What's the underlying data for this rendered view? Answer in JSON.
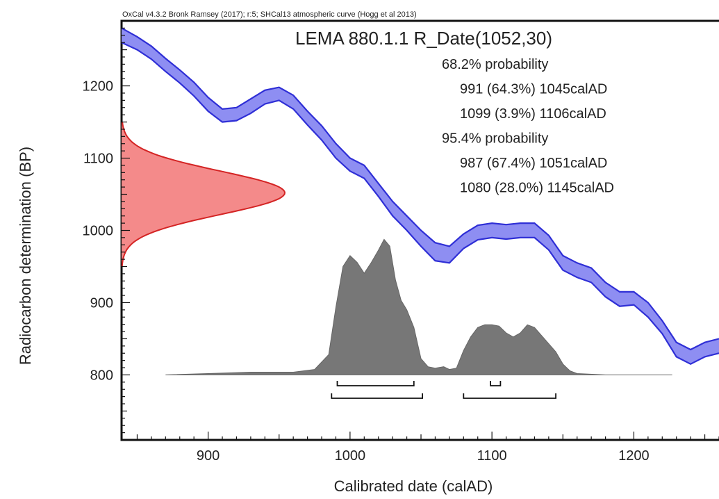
{
  "header_text": "OxCal v4.3.2 Bronk Ramsey (2017); r:5; SHCal13 atmospheric curve (Hogg et al 2013)",
  "chart_data": {
    "type": "area",
    "title": "LEMA 880.1.1 R_Date(1052,30)",
    "xlabel": "Calibrated date (calAD)",
    "ylabel": "Radiocarbon determination (BP)",
    "xlim": [
      839,
      1260
    ],
    "ylim": [
      710,
      1290
    ],
    "x_ticks": [
      900,
      1000,
      1100,
      1200
    ],
    "y_ticks": [
      800,
      900,
      1000,
      1100,
      1200
    ],
    "annotations": [
      "68.2% probability",
      "991 (64.3%) 1045calAD",
      "1099 (3.9%) 1106calAD",
      "95.4% probability",
      "987 (67.4%) 1051calAD",
      "1080 (28.0%) 1145calAD"
    ],
    "radiocarbon_date": {
      "mean_bp": 1052,
      "error": 30
    },
    "calibration_curve": {
      "name": "SHCal13",
      "color": "#2f2fd6",
      "fill": "#8e8ef2",
      "x": [
        839,
        850,
        860,
        870,
        880,
        890,
        900,
        910,
        920,
        930,
        940,
        950,
        960,
        970,
        980,
        990,
        1000,
        1010,
        1020,
        1030,
        1040,
        1050,
        1060,
        1070,
        1080,
        1090,
        1100,
        1110,
        1120,
        1130,
        1140,
        1150,
        1160,
        1170,
        1180,
        1190,
        1200,
        1210,
        1220,
        1230,
        1240,
        1250,
        1260
      ],
      "upper": [
        1280,
        1268,
        1255,
        1238,
        1222,
        1205,
        1184,
        1168,
        1170,
        1182,
        1194,
        1198,
        1187,
        1165,
        1145,
        1120,
        1100,
        1090,
        1065,
        1040,
        1020,
        1000,
        983,
        978,
        995,
        1007,
        1010,
        1008,
        1010,
        1010,
        993,
        965,
        955,
        948,
        928,
        915,
        915,
        900,
        875,
        845,
        835,
        845,
        850
      ],
      "lower": [
        1260,
        1250,
        1237,
        1220,
        1204,
        1186,
        1165,
        1150,
        1152,
        1162,
        1175,
        1180,
        1168,
        1146,
        1125,
        1100,
        1082,
        1072,
        1047,
        1020,
        1000,
        978,
        958,
        955,
        975,
        987,
        990,
        988,
        990,
        990,
        973,
        945,
        935,
        928,
        908,
        895,
        897,
        880,
        857,
        825,
        815,
        825,
        830
      ]
    },
    "measured_distribution": {
      "color": "#d42424",
      "fill": "#f48a8a",
      "range_bp": [
        950,
        1150
      ],
      "peak_bp": 1052
    },
    "calibrated_distribution": {
      "color": "#777777",
      "x": [
        870,
        900,
        930,
        960,
        975,
        985,
        990,
        995,
        1000,
        1005,
        1010,
        1015,
        1020,
        1024,
        1028,
        1032,
        1036,
        1040,
        1045,
        1050,
        1055,
        1060,
        1066,
        1070,
        1075,
        1080,
        1085,
        1090,
        1095,
        1100,
        1105,
        1110,
        1115,
        1120,
        1125,
        1130,
        1135,
        1140,
        1145,
        1150,
        1155,
        1160,
        1180,
        1227
      ],
      "density": [
        0,
        0.01,
        0.02,
        0.02,
        0.04,
        0.15,
        0.5,
        0.8,
        0.88,
        0.83,
        0.75,
        0.83,
        0.92,
        1.0,
        0.95,
        0.7,
        0.55,
        0.48,
        0.35,
        0.12,
        0.06,
        0.05,
        0.06,
        0.04,
        0.05,
        0.18,
        0.28,
        0.35,
        0.37,
        0.37,
        0.36,
        0.31,
        0.28,
        0.31,
        0.37,
        0.35,
        0.29,
        0.23,
        0.17,
        0.08,
        0.03,
        0.01,
        0,
        0
      ]
    },
    "ranges_68": [
      [
        991,
        1045
      ],
      [
        1099,
        1106
      ]
    ],
    "ranges_95": [
      [
        987,
        1051
      ],
      [
        1080,
        1145
      ]
    ]
  }
}
